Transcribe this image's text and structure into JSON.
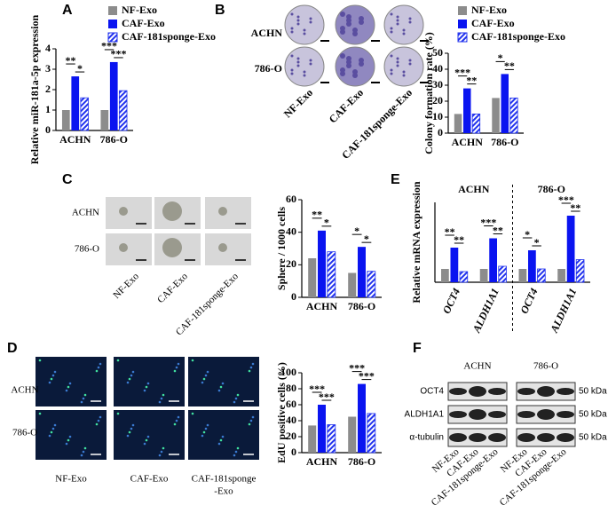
{
  "panel_labels": [
    "A",
    "B",
    "C",
    "E",
    "D",
    "F"
  ],
  "chart_data": [
    {
      "type": "bar",
      "ylabel": "Relative miR-181a-5p expression",
      "categories": [
        "ACHN",
        "786-O"
      ],
      "ylim": [
        0,
        4
      ],
      "yticks": [
        0,
        1,
        2,
        3,
        4
      ],
      "legend": "top",
      "series": [
        {
          "name": "NF-Exo",
          "color": "#8c8c8c",
          "values": [
            1,
            1
          ]
        },
        {
          "name": "CAF-Exo",
          "color": "#0a14f0",
          "values": [
            2.65,
            3.35
          ]
        },
        {
          "name": "CAF-181sponge-Exo",
          "color": "#2233ee",
          "hatch": true,
          "values": [
            1.6,
            1.95
          ]
        }
      ],
      "annotations": [
        "**",
        "*",
        "***",
        "***"
      ]
    },
    {
      "type": "bar",
      "ylabel": "Colony formation rate (%)",
      "categories": [
        "ACHN",
        "786-O"
      ],
      "ylim": [
        0,
        50
      ],
      "yticks": [
        0,
        10,
        20,
        30,
        40,
        50
      ],
      "legend": "top",
      "series": [
        {
          "name": "NF-Exo",
          "color": "#8c8c8c",
          "values": [
            12,
            22
          ]
        },
        {
          "name": "CAF-Exo",
          "color": "#0a14f0",
          "values": [
            28,
            37
          ]
        },
        {
          "name": "CAF-181sponge-Exo",
          "color": "#2233ee",
          "hatch": true,
          "values": [
            12,
            22
          ]
        }
      ],
      "annotations": [
        "***",
        "**",
        "*",
        "**"
      ]
    },
    {
      "type": "bar",
      "ylabel": "Sphere / 1000 cells",
      "categories": [
        "ACHN",
        "786-O"
      ],
      "ylim": [
        0,
        60
      ],
      "yticks": [
        0,
        20,
        40,
        60
      ],
      "series": [
        {
          "color": "#8c8c8c",
          "values": [
            24,
            15
          ]
        },
        {
          "color": "#0a14f0",
          "values": [
            41,
            31
          ]
        },
        {
          "color": "#2233ee",
          "hatch": true,
          "values": [
            28,
            16
          ]
        }
      ],
      "annotations": [
        "**",
        "*",
        "*",
        "*"
      ]
    },
    {
      "type": "bar",
      "ylabel": "EdU positive cells (%)",
      "categories": [
        "ACHN",
        "786-O"
      ],
      "ylim": [
        0,
        100
      ],
      "yticks": [
        0,
        20,
        40,
        60,
        80,
        100
      ],
      "series": [
        {
          "color": "#8c8c8c",
          "values": [
            34,
            45
          ]
        },
        {
          "color": "#0a14f0",
          "values": [
            60,
            86
          ]
        },
        {
          "color": "#2233ee",
          "hatch": true,
          "values": [
            35,
            49
          ]
        }
      ],
      "annotations": [
        "***",
        "***",
        "***",
        "***"
      ]
    },
    {
      "type": "bar",
      "ylabel": "Relative mRNA expression",
      "categories": [
        "OCT4",
        "ALDH1A1",
        "OCT4",
        "ALDH1A1"
      ],
      "groups": [
        "ACHN",
        "786-O"
      ],
      "ylim": [
        0,
        6
      ],
      "series": [
        {
          "color": "#8c8c8c",
          "values": [
            1,
            1,
            1,
            1
          ]
        },
        {
          "color": "#0a14f0",
          "values": [
            2.6,
            3.3,
            2.4,
            5
          ]
        },
        {
          "color": "#2233ee",
          "hatch": true,
          "values": [
            0.8,
            1.2,
            1,
            1.7
          ]
        }
      ],
      "annotations": [
        "**",
        "**",
        "***",
        "**",
        "*",
        "*",
        "***",
        "**"
      ]
    }
  ],
  "colony_images": {
    "rows": [
      "ACHN",
      "786-O"
    ],
    "columns": [
      "NF-Exo",
      "CAF-Exo",
      "CAF-181sponge-Exo"
    ]
  },
  "sphere_images": {
    "rows": [
      "ACHN",
      "786-O"
    ],
    "columns": [
      "NF-Exo",
      "CAF-Exo",
      "CAF-181sponge-Exo"
    ]
  },
  "edu_images": {
    "rows": [
      "ACHN",
      "786-O"
    ],
    "columns": [
      [
        "NF-Exo"
      ],
      [
        "CAF-Exo"
      ],
      [
        "CAF-181sponge",
        "-Exo"
      ]
    ]
  },
  "western_blot": {
    "cell_lines": [
      "ACHN",
      "786-O"
    ],
    "proteins": [
      "OCT4",
      "ALDH1A1",
      "α-tubulin"
    ],
    "sizes": [
      "50 kDa",
      "50 kDa",
      "50 kDa"
    ],
    "lanes": [
      "NF-Exo",
      "CAF-Exo",
      "CAF-181sponge-Exo"
    ]
  }
}
